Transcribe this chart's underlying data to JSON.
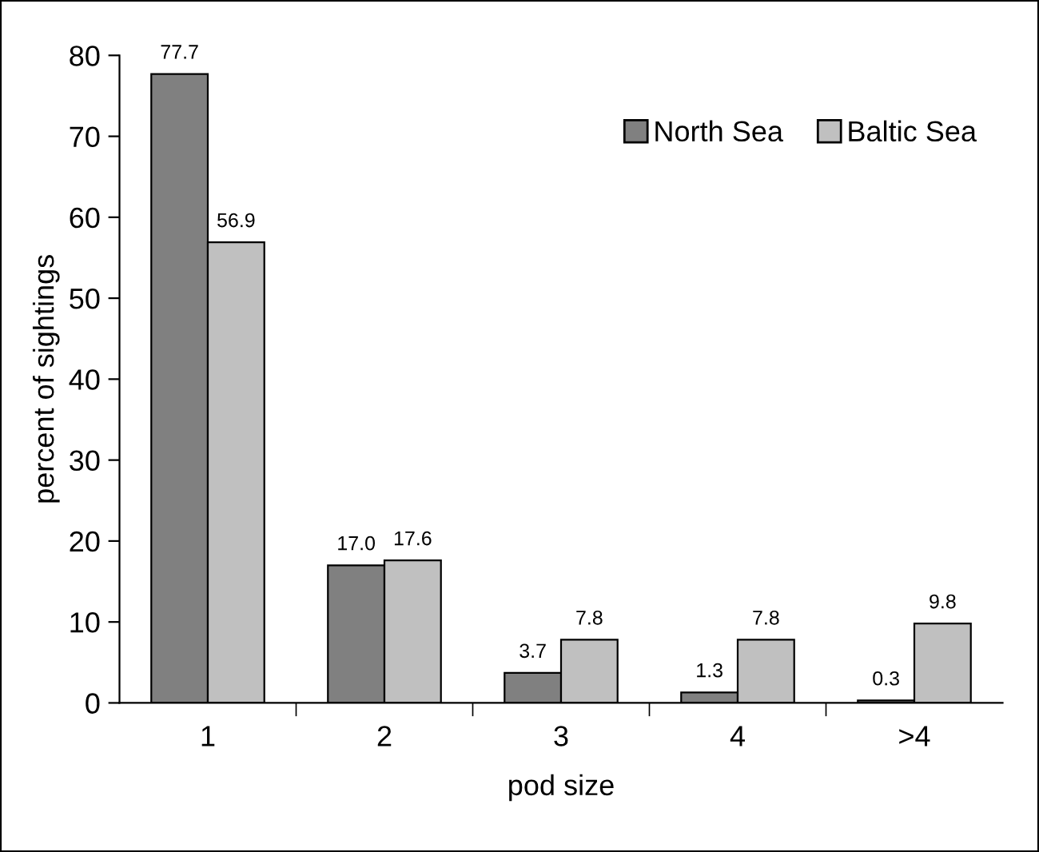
{
  "chart_data": {
    "type": "bar",
    "xlabel": "pod size",
    "ylabel": "percent of sightings",
    "categories": [
      "1",
      "2",
      "3",
      "4",
      ">4"
    ],
    "series": [
      {
        "name": "North Sea",
        "color": "#808080",
        "values": [
          77.7,
          17.0,
          3.7,
          1.3,
          0.3
        ],
        "value_labels": [
          "77.7",
          "17.0",
          "3.7",
          "1.3",
          "0.3"
        ]
      },
      {
        "name": "Baltic Sea",
        "color": "#c0c0c0",
        "values": [
          56.9,
          17.6,
          7.8,
          7.8,
          9.8
        ],
        "value_labels": [
          "56.9",
          "17.6",
          "7.8",
          "7.8",
          "9.8"
        ]
      }
    ],
    "ylim": [
      0,
      80
    ],
    "yticks": [
      0,
      10,
      20,
      30,
      40,
      50,
      60,
      70,
      80
    ],
    "grid": false,
    "legend": "top right"
  }
}
